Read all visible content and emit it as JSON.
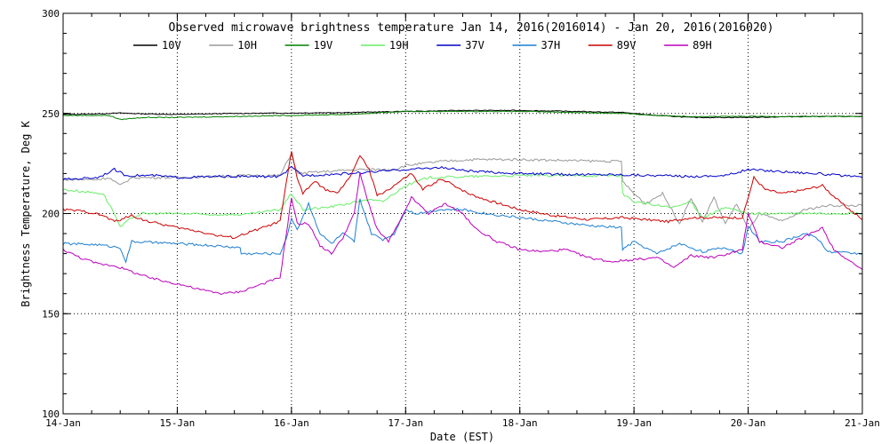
{
  "chart_data": {
    "type": "line",
    "title": "Observed microwave brightness temperature Jan 14, 2016(2016014) - Jan 20, 2016(2016020)",
    "xlabel": "Date (EST)",
    "ylabel": "Brightness Temperature, Deg K",
    "xlim": [
      0,
      7
    ],
    "ylim": [
      100,
      300
    ],
    "xticks": [
      {
        "value": 0,
        "label": "14-Jan"
      },
      {
        "value": 1,
        "label": "15-Jan"
      },
      {
        "value": 2,
        "label": "16-Jan"
      },
      {
        "value": 3,
        "label": "17-Jan"
      },
      {
        "value": 4,
        "label": "18-Jan"
      },
      {
        "value": 5,
        "label": "19-Jan"
      },
      {
        "value": 6,
        "label": "20-Jan"
      },
      {
        "value": 7,
        "label": "21-Jan"
      }
    ],
    "yticks": [
      100,
      150,
      200,
      250,
      300
    ],
    "grid": "dotted",
    "legend_position": "top",
    "series": [
      {
        "name": "10V",
        "color": "#000000",
        "points": [
          [
            0,
            249.5
          ],
          [
            0.3,
            249.8
          ],
          [
            0.5,
            250.2
          ],
          [
            0.7,
            249.8
          ],
          [
            1,
            249.5
          ],
          [
            1.5,
            250
          ],
          [
            2,
            250.2
          ],
          [
            2.5,
            250.5
          ],
          [
            3,
            251
          ],
          [
            3.5,
            251.5
          ],
          [
            4,
            251.5
          ],
          [
            4.5,
            251
          ],
          [
            4.9,
            250.5
          ],
          [
            5.2,
            249
          ],
          [
            5.5,
            248
          ],
          [
            6,
            248
          ],
          [
            6.5,
            248.5
          ],
          [
            7,
            248.5
          ]
        ]
      },
      {
        "name": "10H",
        "color": "#999999",
        "points": [
          [
            0,
            217
          ],
          [
            0.3,
            217
          ],
          [
            0.4,
            218
          ],
          [
            0.5,
            214
          ],
          [
            0.6,
            218
          ],
          [
            0.8,
            218
          ],
          [
            1,
            218
          ],
          [
            1.3,
            218.5
          ],
          [
            1.6,
            219
          ],
          [
            1.9,
            219
          ],
          [
            2,
            230
          ],
          [
            2.05,
            220
          ],
          [
            2.3,
            221
          ],
          [
            2.6,
            222
          ],
          [
            2.9,
            222
          ],
          [
            3,
            224
          ],
          [
            3.3,
            226
          ],
          [
            3.6,
            227
          ],
          [
            4,
            227
          ],
          [
            4.4,
            226.5
          ],
          [
            4.89,
            226
          ],
          [
            4.9,
            216
          ],
          [
            5,
            210
          ],
          [
            5.1,
            205
          ],
          [
            5.25,
            210
          ],
          [
            5.4,
            195
          ],
          [
            5.5,
            208
          ],
          [
            5.6,
            196
          ],
          [
            5.7,
            208
          ],
          [
            5.8,
            195
          ],
          [
            5.9,
            205
          ],
          [
            6,
            192
          ],
          [
            6.1,
            200
          ],
          [
            6.3,
            196
          ],
          [
            6.5,
            202
          ],
          [
            6.7,
            204
          ],
          [
            7,
            204
          ]
        ]
      },
      {
        "name": "19V",
        "color": "#008000",
        "points": [
          [
            0,
            249
          ],
          [
            0.4,
            249
          ],
          [
            0.5,
            247
          ],
          [
            0.7,
            248
          ],
          [
            1,
            248
          ],
          [
            1.5,
            248.5
          ],
          [
            2,
            249
          ],
          [
            2.5,
            249.5
          ],
          [
            3,
            251
          ],
          [
            3.5,
            251
          ],
          [
            4,
            251
          ],
          [
            4.5,
            250.5
          ],
          [
            4.9,
            250
          ],
          [
            5.2,
            249
          ],
          [
            5.5,
            248.5
          ],
          [
            6,
            248.5
          ],
          [
            6.5,
            248.5
          ],
          [
            7,
            248.5
          ]
        ]
      },
      {
        "name": "19H",
        "color": "#66ee66",
        "points": [
          [
            0,
            212
          ],
          [
            0.35,
            210
          ],
          [
            0.45,
            200
          ],
          [
            0.5,
            193
          ],
          [
            0.6,
            198
          ],
          [
            0.7,
            200
          ],
          [
            1,
            200
          ],
          [
            1.3,
            199.5
          ],
          [
            1.6,
            199.5
          ],
          [
            1.9,
            202
          ],
          [
            2,
            210
          ],
          [
            2.1,
            202
          ],
          [
            2.3,
            203
          ],
          [
            2.5,
            205
          ],
          [
            2.65,
            207
          ],
          [
            2.8,
            206
          ],
          [
            3,
            214
          ],
          [
            3.2,
            218
          ],
          [
            3.6,
            218.5
          ],
          [
            4,
            219
          ],
          [
            4.4,
            219
          ],
          [
            4.89,
            219
          ],
          [
            4.9,
            210
          ],
          [
            5,
            206
          ],
          [
            5.2,
            204
          ],
          [
            5.35,
            203
          ],
          [
            5.5,
            206
          ],
          [
            5.6,
            198
          ],
          [
            5.8,
            203
          ],
          [
            6,
            200
          ],
          [
            6.3,
            200
          ],
          [
            6.6,
            200
          ],
          [
            7,
            200
          ]
        ]
      },
      {
        "name": "37V",
        "color": "#0000cc",
        "points": [
          [
            0,
            217
          ],
          [
            0.3,
            218
          ],
          [
            0.45,
            222
          ],
          [
            0.55,
            219
          ],
          [
            0.8,
            219
          ],
          [
            1,
            218
          ],
          [
            1.4,
            218.5
          ],
          [
            1.9,
            218.5
          ],
          [
            2,
            223
          ],
          [
            2.1,
            219
          ],
          [
            2.5,
            220
          ],
          [
            3,
            222
          ],
          [
            3.3,
            223
          ],
          [
            3.6,
            221
          ],
          [
            4,
            220
          ],
          [
            4.4,
            219.5
          ],
          [
            4.8,
            219.5
          ],
          [
            5.2,
            219
          ],
          [
            5.5,
            218.5
          ],
          [
            5.8,
            219
          ],
          [
            6,
            222
          ],
          [
            6.3,
            221
          ],
          [
            6.6,
            220
          ],
          [
            7,
            218
          ]
        ]
      },
      {
        "name": "37H",
        "color": "#1e7fd0",
        "points": [
          [
            0,
            185
          ],
          [
            0.3,
            184.5
          ],
          [
            0.5,
            183
          ],
          [
            0.55,
            176
          ],
          [
            0.6,
            186
          ],
          [
            0.8,
            185.5
          ],
          [
            1,
            185
          ],
          [
            1.3,
            184
          ],
          [
            1.55,
            183
          ],
          [
            1.56,
            180
          ],
          [
            1.9,
            180
          ],
          [
            1.97,
            190
          ],
          [
            2,
            198
          ],
          [
            2.05,
            192
          ],
          [
            2.15,
            205
          ],
          [
            2.25,
            190
          ],
          [
            2.35,
            185
          ],
          [
            2.45,
            190
          ],
          [
            2.55,
            186
          ],
          [
            2.6,
            207
          ],
          [
            2.7,
            190
          ],
          [
            2.8,
            187
          ],
          [
            2.9,
            190
          ],
          [
            3,
            202
          ],
          [
            3.1,
            200
          ],
          [
            3.3,
            202
          ],
          [
            3.5,
            202
          ],
          [
            3.7,
            200
          ],
          [
            4,
            198
          ],
          [
            4.3,
            196
          ],
          [
            4.6,
            194
          ],
          [
            4.89,
            193
          ],
          [
            4.9,
            182
          ],
          [
            5,
            186
          ],
          [
            5.2,
            180
          ],
          [
            5.4,
            185
          ],
          [
            5.6,
            181
          ],
          [
            5.8,
            183
          ],
          [
            5.95,
            180
          ],
          [
            6,
            194
          ],
          [
            6.1,
            186
          ],
          [
            6.3,
            186
          ],
          [
            6.5,
            190
          ],
          [
            6.6,
            188
          ],
          [
            6.7,
            181
          ],
          [
            7,
            180
          ]
        ]
      },
      {
        "name": "89V",
        "color": "#cc0000",
        "points": [
          [
            0,
            202
          ],
          [
            0.2,
            201
          ],
          [
            0.35,
            199
          ],
          [
            0.45,
            196
          ],
          [
            0.6,
            199
          ],
          [
            0.75,
            196
          ],
          [
            1,
            193
          ],
          [
            1.2,
            191
          ],
          [
            1.35,
            189
          ],
          [
            1.5,
            188
          ],
          [
            1.7,
            192
          ],
          [
            1.9,
            196
          ],
          [
            2,
            231
          ],
          [
            2.05,
            218
          ],
          [
            2.1,
            210
          ],
          [
            2.2,
            216
          ],
          [
            2.3,
            212
          ],
          [
            2.4,
            210
          ],
          [
            2.5,
            217
          ],
          [
            2.6,
            229
          ],
          [
            2.68,
            222
          ],
          [
            2.75,
            209
          ],
          [
            2.85,
            212
          ],
          [
            2.95,
            216
          ],
          [
            3.05,
            220
          ],
          [
            3.15,
            212
          ],
          [
            3.3,
            217
          ],
          [
            3.4,
            215
          ],
          [
            3.55,
            210
          ],
          [
            3.7,
            207
          ],
          [
            4,
            202
          ],
          [
            4.3,
            199
          ],
          [
            4.6,
            197
          ],
          [
            4.9,
            198
          ],
          [
            5.1,
            197
          ],
          [
            5.3,
            196
          ],
          [
            5.5,
            198
          ],
          [
            5.7,
            198
          ],
          [
            5.95,
            198
          ],
          [
            6.05,
            218
          ],
          [
            6.15,
            212
          ],
          [
            6.3,
            210
          ],
          [
            6.5,
            212
          ],
          [
            6.65,
            214
          ],
          [
            6.8,
            206
          ],
          [
            7,
            197
          ]
        ]
      },
      {
        "name": "89H",
        "color": "#bb00bb",
        "points": [
          [
            0,
            182
          ],
          [
            0.15,
            178
          ],
          [
            0.3,
            175
          ],
          [
            0.45,
            174
          ],
          [
            0.6,
            171
          ],
          [
            0.75,
            168
          ],
          [
            0.9,
            166
          ],
          [
            1,
            165
          ],
          [
            1.2,
            162
          ],
          [
            1.4,
            160
          ],
          [
            1.55,
            161
          ],
          [
            1.75,
            165
          ],
          [
            1.9,
            168
          ],
          [
            2,
            208
          ],
          [
            2.05,
            195
          ],
          [
            2.15,
            195
          ],
          [
            2.25,
            184
          ],
          [
            2.35,
            180
          ],
          [
            2.45,
            188
          ],
          [
            2.55,
            200
          ],
          [
            2.6,
            220
          ],
          [
            2.65,
            210
          ],
          [
            2.75,
            192
          ],
          [
            2.85,
            186
          ],
          [
            2.95,
            196
          ],
          [
            3.05,
            208
          ],
          [
            3.2,
            200
          ],
          [
            3.35,
            205
          ],
          [
            3.5,
            200
          ],
          [
            3.6,
            193
          ],
          [
            3.8,
            186
          ],
          [
            4,
            182
          ],
          [
            4.2,
            181
          ],
          [
            4.4,
            182
          ],
          [
            4.6,
            178
          ],
          [
            4.8,
            176
          ],
          [
            5,
            177
          ],
          [
            5.2,
            178
          ],
          [
            5.35,
            173
          ],
          [
            5.5,
            179
          ],
          [
            5.7,
            178
          ],
          [
            5.95,
            182
          ],
          [
            6,
            200
          ],
          [
            6.1,
            186
          ],
          [
            6.3,
            183
          ],
          [
            6.55,
            190
          ],
          [
            6.65,
            193
          ],
          [
            6.75,
            182
          ],
          [
            7,
            172
          ]
        ]
      }
    ]
  }
}
